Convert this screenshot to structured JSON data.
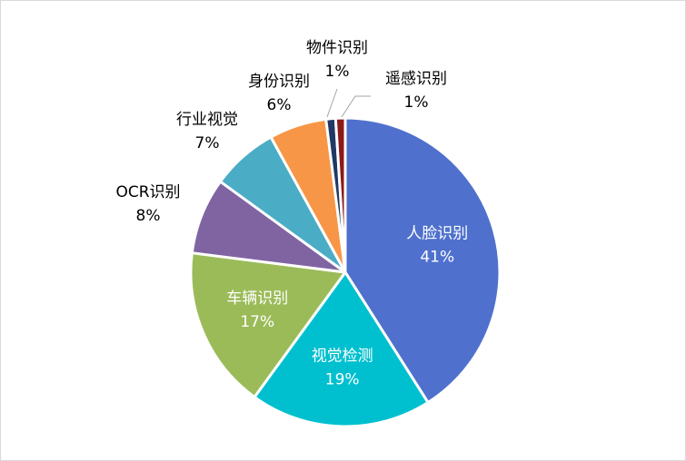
{
  "chart_data": {
    "type": "pie",
    "title": "",
    "slices": [
      {
        "name": "人脸识别",
        "value": 41,
        "label": "41%",
        "color": "#4f71cd",
        "label_inside": true
      },
      {
        "name": "视觉检测",
        "value": 19,
        "label": "19%",
        "color": "#00c0cf",
        "label_inside": true
      },
      {
        "name": "车辆识别",
        "value": 17,
        "label": "17%",
        "color": "#9bbb59",
        "label_inside": true
      },
      {
        "name": "OCR识别",
        "value": 8,
        "label": "8%",
        "color": "#8064a2",
        "label_inside": false
      },
      {
        "name": "行业视觉",
        "value": 7,
        "label": "7%",
        "color": "#4bacc6",
        "label_inside": false
      },
      {
        "name": "身份识别",
        "value": 6,
        "label": "6%",
        "color": "#f79646",
        "label_inside": false
      },
      {
        "name": "物件识别",
        "value": 1,
        "label": "1%",
        "color": "#1f3864",
        "label_inside": false
      },
      {
        "name": "遥感识别",
        "value": 1,
        "label": "1%",
        "color": "#8b1a1a",
        "label_inside": false
      }
    ]
  }
}
